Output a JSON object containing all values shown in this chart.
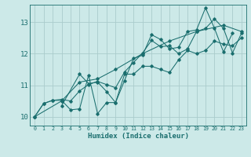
{
  "xlabel": "Humidex (Indice chaleur)",
  "bg_color": "#cce9e8",
  "grid_color": "#aacccc",
  "line_color": "#1a6e6e",
  "xlim": [
    -0.5,
    23.5
  ],
  "ylim": [
    9.72,
    13.55
  ],
  "yticks": [
    10,
    11,
    12,
    13
  ],
  "xticks": [
    0,
    1,
    2,
    3,
    4,
    5,
    6,
    7,
    8,
    9,
    10,
    11,
    12,
    13,
    14,
    15,
    16,
    17,
    18,
    19,
    20,
    21,
    22,
    23
  ],
  "series": [
    {
      "x": [
        0,
        1,
        2,
        3,
        4,
        5,
        6,
        7,
        8,
        9,
        10,
        11,
        12,
        13,
        14,
        15,
        16,
        17,
        18,
        19,
        20,
        21,
        22
      ],
      "y": [
        10.0,
        10.42,
        10.52,
        10.52,
        10.22,
        10.25,
        11.32,
        10.1,
        10.45,
        10.45,
        11.15,
        11.85,
        11.95,
        12.6,
        12.45,
        12.15,
        12.2,
        12.7,
        12.75,
        13.45,
        12.8,
        12.05,
        12.65
      ]
    },
    {
      "x": [
        0,
        3,
        5,
        7,
        9,
        12,
        15,
        18,
        21,
        23
      ],
      "y": [
        10.0,
        10.5,
        11.1,
        11.2,
        11.5,
        12.0,
        12.4,
        12.7,
        12.9,
        12.7
      ]
    },
    {
      "x": [
        3,
        5,
        6,
        7,
        8,
        9,
        10,
        11,
        12,
        13,
        14,
        15,
        16,
        17,
        18,
        19,
        20,
        21,
        22,
        23
      ],
      "y": [
        10.35,
        11.35,
        11.05,
        11.1,
        10.8,
        10.45,
        11.35,
        11.35,
        11.6,
        11.6,
        11.5,
        11.4,
        11.8,
        12.1,
        12.0,
        12.1,
        12.4,
        12.3,
        12.25,
        12.5
      ]
    },
    {
      "x": [
        0,
        1,
        2,
        3,
        4,
        5,
        6,
        7,
        8,
        9,
        10,
        11,
        12,
        13,
        14,
        15,
        16,
        17,
        18,
        19,
        20,
        21,
        22,
        23
      ],
      "y": [
        10.0,
        10.42,
        10.52,
        10.55,
        10.5,
        10.82,
        11.02,
        11.12,
        11.02,
        10.92,
        11.42,
        11.72,
        12.02,
        12.42,
        12.22,
        12.25,
        12.0,
        12.15,
        12.7,
        12.8,
        13.1,
        12.8,
        12.02,
        12.65
      ]
    }
  ]
}
